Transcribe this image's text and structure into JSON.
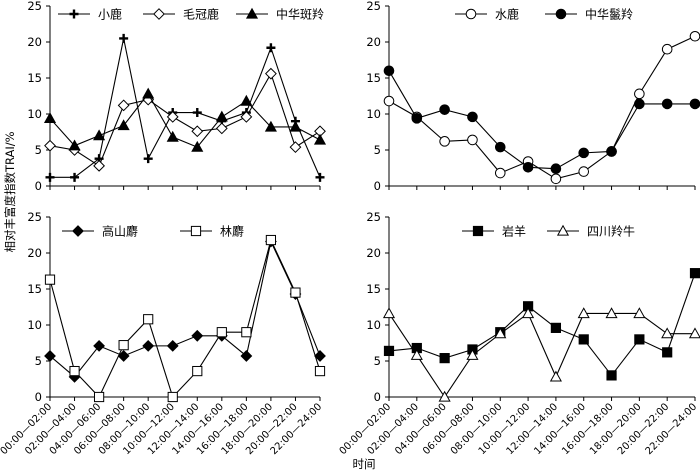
{
  "figure": {
    "shared_xlabel": "时间",
    "shared_ylabel": "相对丰富度指数TRAI/%"
  },
  "chart_data": [
    {
      "type": "line",
      "categories": [
        "00:00—02:00",
        "02:00—04:00",
        "04:00—06:00",
        "06:00—08:00",
        "08:00—10:00",
        "10:00—12:00",
        "12:00—14:00",
        "14:00—16:00",
        "16:00—18:00",
        "18:00—20:00",
        "20:00—22:00",
        "22:00—24:00"
      ],
      "ylim": [
        0,
        25
      ],
      "yticks": [
        0,
        5,
        10,
        15,
        20,
        25
      ],
      "show_x_tick_labels": false,
      "series": [
        {
          "name": "小鹿",
          "marker": "plus",
          "values": [
            1.2,
            1.2,
            3.8,
            20.5,
            3.8,
            10.2,
            10.2,
            9.0,
            10.2,
            19.2,
            9.0,
            1.2
          ]
        },
        {
          "name": "毛冠鹿",
          "marker": "diamond-open",
          "values": [
            5.6,
            5.0,
            2.8,
            11.2,
            12.0,
            9.6,
            7.6,
            8.0,
            9.6,
            15.6,
            5.4,
            7.6
          ]
        },
        {
          "name": "中华斑羚",
          "marker": "triangle-filled",
          "values": [
            9.4,
            5.6,
            7.0,
            8.4,
            12.8,
            6.8,
            5.4,
            9.6,
            11.8,
            8.2,
            8.2,
            6.4
          ]
        }
      ]
    },
    {
      "type": "line",
      "categories": [
        "00:00—02:00",
        "02:00—04:00",
        "04:00—06:00",
        "06:00—08:00",
        "08:00—10:00",
        "10:00—12:00",
        "12:00—14:00",
        "14:00—16:00",
        "16:00—18:00",
        "18:00—20:00",
        "20:00—22:00",
        "22:00—24:00"
      ],
      "ylim": [
        0,
        25
      ],
      "yticks": [
        0,
        5,
        10,
        15,
        20,
        25
      ],
      "show_x_tick_labels": false,
      "series": [
        {
          "name": "水鹿",
          "marker": "circle-open",
          "values": [
            11.8,
            9.6,
            6.2,
            6.4,
            1.8,
            3.4,
            1.0,
            2.0,
            4.8,
            12.8,
            19.0,
            20.8
          ]
        },
        {
          "name": "中华鬣羚",
          "marker": "circle-filled",
          "values": [
            16.0,
            9.4,
            10.6,
            9.6,
            5.4,
            2.6,
            2.4,
            4.6,
            4.8,
            11.4,
            11.4,
            11.4
          ]
        }
      ]
    },
    {
      "type": "line",
      "categories": [
        "00:00—02:00",
        "02:00—04:00",
        "04:00—06:00",
        "06:00—08:00",
        "08:00—10:00",
        "10:00—12:00",
        "12:00—14:00",
        "14:00—16:00",
        "16:00—18:00",
        "18:00—20:00",
        "20:00—22:00",
        "22:00—24:00"
      ],
      "ylim": [
        0,
        25
      ],
      "yticks": [
        0,
        5,
        10,
        15,
        20,
        25
      ],
      "show_x_tick_labels": true,
      "series": [
        {
          "name": "高山麝",
          "marker": "diamond-filled",
          "values": [
            5.7,
            2.8,
            7.1,
            5.7,
            7.1,
            7.1,
            8.5,
            8.5,
            5.7,
            21.6,
            14.3,
            5.7
          ]
        },
        {
          "name": "林麝",
          "marker": "square-open",
          "values": [
            16.3,
            3.6,
            0.0,
            7.2,
            10.8,
            0.0,
            3.6,
            9.0,
            9.0,
            21.8,
            14.5,
            3.6
          ]
        }
      ]
    },
    {
      "type": "line",
      "categories": [
        "00:00—02:00",
        "02:00—04:00",
        "04:00—06:00",
        "06:00—08:00",
        "08:00—10:00",
        "10:00—12:00",
        "12:00—14:00",
        "14:00—16:00",
        "16:00—18:00",
        "18:00—20:00",
        "20:00—22:00",
        "22:00—24:00"
      ],
      "ylim": [
        0,
        25
      ],
      "yticks": [
        0,
        5,
        10,
        15,
        20,
        25
      ],
      "show_x_tick_labels": true,
      "series": [
        {
          "name": "岩羊",
          "marker": "square-filled",
          "values": [
            6.4,
            6.8,
            5.4,
            6.6,
            9.0,
            12.6,
            9.6,
            8.0,
            3.0,
            8.0,
            6.2,
            17.2
          ]
        },
        {
          "name": "四川羚牛",
          "marker": "triangle-open",
          "values": [
            11.6,
            5.8,
            0.0,
            5.8,
            8.8,
            11.6,
            2.8,
            11.6,
            11.6,
            11.6,
            8.8,
            8.8
          ]
        }
      ]
    }
  ]
}
